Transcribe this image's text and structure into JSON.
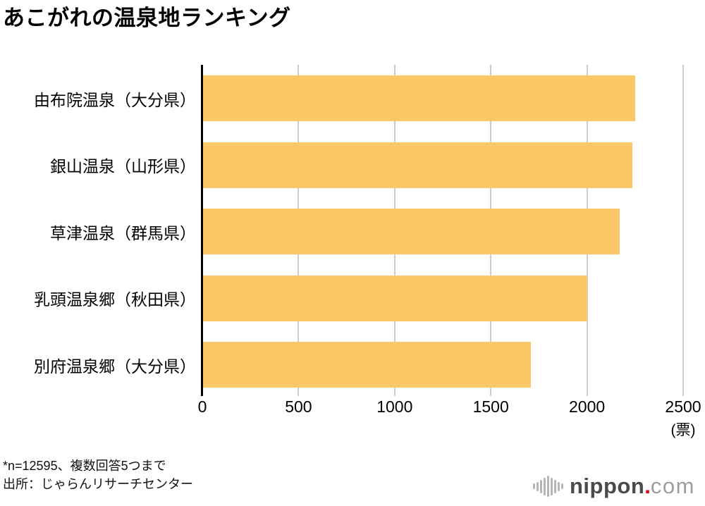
{
  "chart_data": {
    "type": "bar",
    "orientation": "horizontal",
    "title": "あこがれの温泉地ランキング",
    "categories": [
      "由布院温泉（大分県）",
      "銀山温泉（山形県）",
      "草津温泉（群馬県）",
      "乳頭温泉郷（秋田県）",
      "別府温泉郷（大分県）"
    ],
    "values": [
      2250,
      2235,
      2170,
      2000,
      1710
    ],
    "xlabel": "",
    "ylabel": "",
    "xlim": [
      0,
      2500
    ],
    "xticks": [
      0,
      500,
      1000,
      1500,
      2000,
      2500
    ],
    "x_unit_label": "(票)",
    "bar_color": "#fbc867",
    "grid_color": "#cccccc",
    "axis_color": "#000000",
    "grid": true,
    "legend": false
  },
  "footnote": {
    "note": "*n=12595、複数回答5つまで",
    "source": "出所：じゃらんリサーチセンター"
  },
  "logo": {
    "brand": "nippon",
    "dot": ".",
    "tld": "com"
  }
}
